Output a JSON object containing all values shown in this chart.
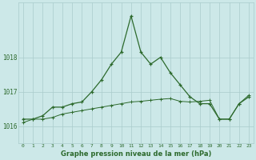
{
  "line1_x": [
    0,
    1,
    2,
    3,
    4,
    5,
    6,
    7,
    8,
    9,
    10,
    11,
    12,
    13,
    14,
    15,
    16,
    17,
    18,
    19,
    20,
    21,
    22,
    23
  ],
  "line1_y": [
    1016.2,
    1016.2,
    1016.3,
    1016.55,
    1016.55,
    1016.65,
    1016.7,
    1017.0,
    1017.35,
    1017.8,
    1018.15,
    1019.2,
    1018.15,
    1017.8,
    1018.0,
    1017.55,
    1017.2,
    1016.85,
    1016.65,
    1016.65,
    1016.2,
    1016.2,
    1016.65,
    1016.85
  ],
  "line2_x": [
    0,
    1,
    2,
    3,
    4,
    5,
    6,
    7,
    8,
    9,
    10,
    11,
    12,
    13,
    14,
    15,
    16,
    17,
    18,
    19,
    20,
    21,
    22,
    23
  ],
  "line2_y": [
    1016.1,
    1016.2,
    1016.2,
    1016.25,
    1016.35,
    1016.4,
    1016.45,
    1016.5,
    1016.55,
    1016.6,
    1016.65,
    1016.7,
    1016.72,
    1016.75,
    1016.78,
    1016.8,
    1016.72,
    1016.7,
    1016.72,
    1016.75,
    1016.2,
    1016.2,
    1016.65,
    1016.9
  ],
  "line_color": "#2d6a2d",
  "bg_color": "#cce8e8",
  "grid_color": "#aacccc",
  "xlabel": "Graphe pression niveau de la mer (hPa)",
  "xtick_labels": [
    "0",
    "1",
    "2",
    "3",
    "4",
    "5",
    "6",
    "7",
    "8",
    "9",
    "10",
    "11",
    "12",
    "13",
    "14",
    "15",
    "16",
    "17",
    "18",
    "19",
    "20",
    "21",
    "22",
    "23"
  ],
  "ytick_values": [
    1016,
    1017,
    1018
  ],
  "ylim": [
    1015.5,
    1019.6
  ],
  "xlim": [
    -0.5,
    23.5
  ],
  "marker": "+"
}
